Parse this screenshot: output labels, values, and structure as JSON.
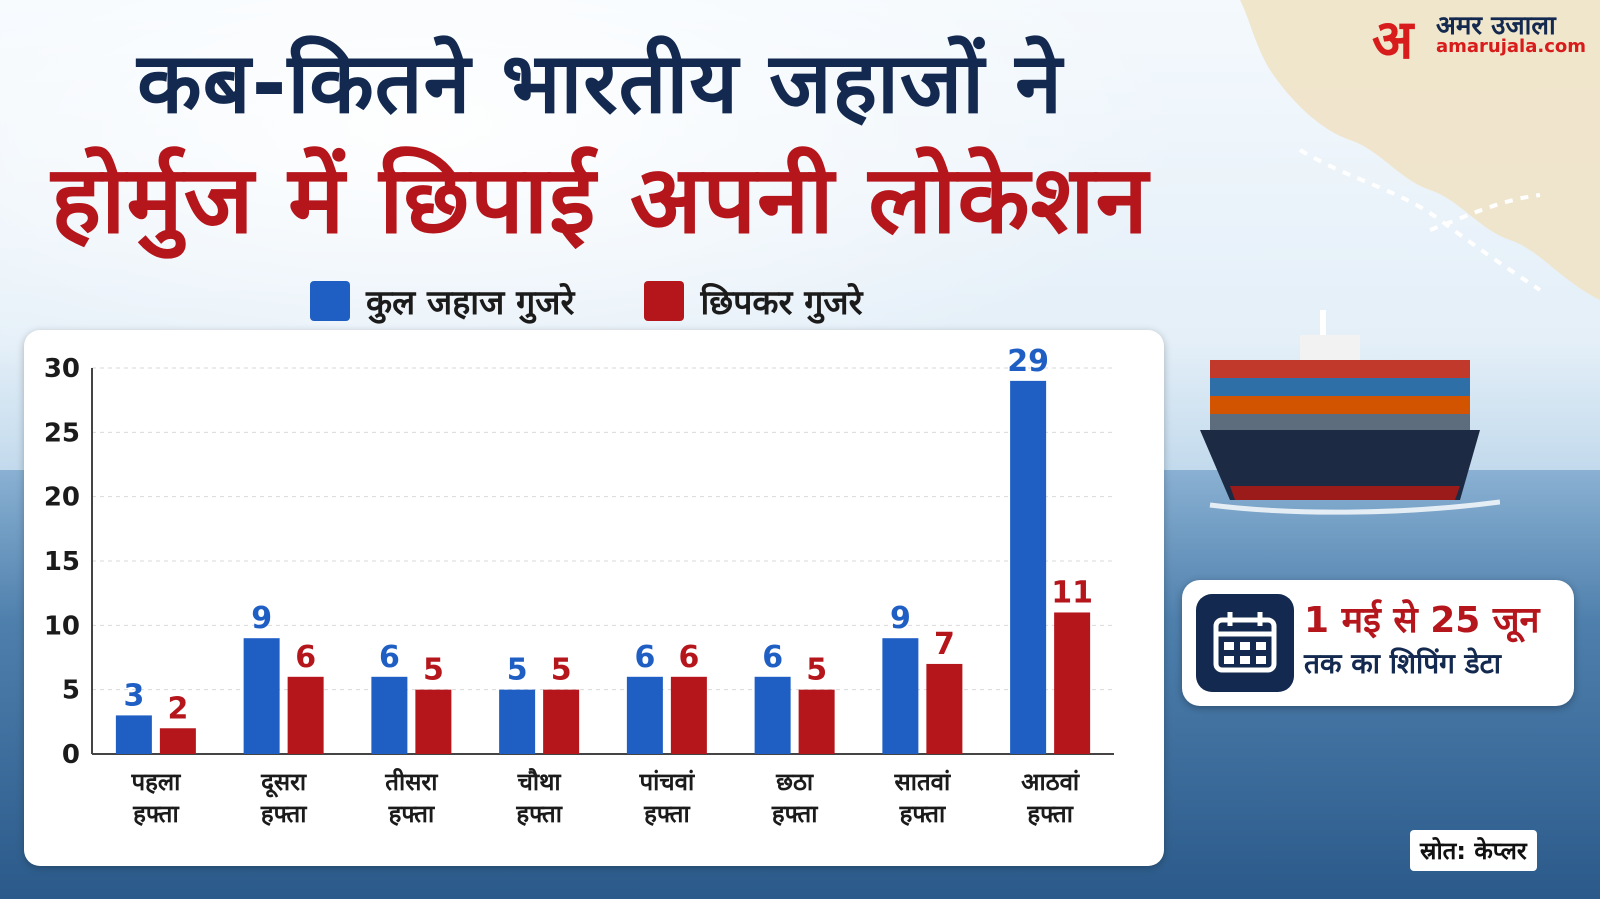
{
  "title": {
    "line1": "कब-कितने भारतीय जहाजों ने",
    "line2": "होर्मुज में छिपाई अपनी लोकेशन"
  },
  "legend": {
    "total": "कुल जहाज गुजरे",
    "hidden": "छिपकर गुजरे"
  },
  "info": {
    "line1": "1 मई से 25 जून",
    "line2": "तक का शिपिंग डेटा",
    "icon": "calendar-icon"
  },
  "source": "स्रोत: केप्लर",
  "logo": {
    "mark": "अ",
    "hindi": "अमर उजाला",
    "english": "amarujala.com"
  },
  "colors": {
    "total": "#1f5fc4",
    "hidden": "#b5161c",
    "title_dark": "#13294f",
    "title_red": "#b5161c"
  },
  "chart_data": {
    "type": "bar",
    "categories": [
      [
        "पहला",
        "हफ्ता"
      ],
      [
        "दूसरा",
        "हफ्ता"
      ],
      [
        "तीसरा",
        "हफ्ता"
      ],
      [
        "चौथा",
        "हफ्ता"
      ],
      [
        "पांचवां",
        "हफ्ता"
      ],
      [
        "छठा",
        "हफ्ता"
      ],
      [
        "सातवां",
        "हफ्ता"
      ],
      [
        "आठवां",
        "हफ्ता"
      ]
    ],
    "series": [
      {
        "name": "कुल जहाज गुजरे",
        "values": [
          3,
          9,
          6,
          5,
          6,
          6,
          9,
          29
        ]
      },
      {
        "name": "छिपकर गुजरे",
        "values": [
          2,
          6,
          5,
          5,
          6,
          5,
          7,
          11
        ]
      }
    ],
    "ylim": [
      0,
      30
    ],
    "yticks": [
      0,
      5,
      10,
      15,
      20,
      25,
      30
    ],
    "grid": true,
    "legend_position": "top"
  }
}
